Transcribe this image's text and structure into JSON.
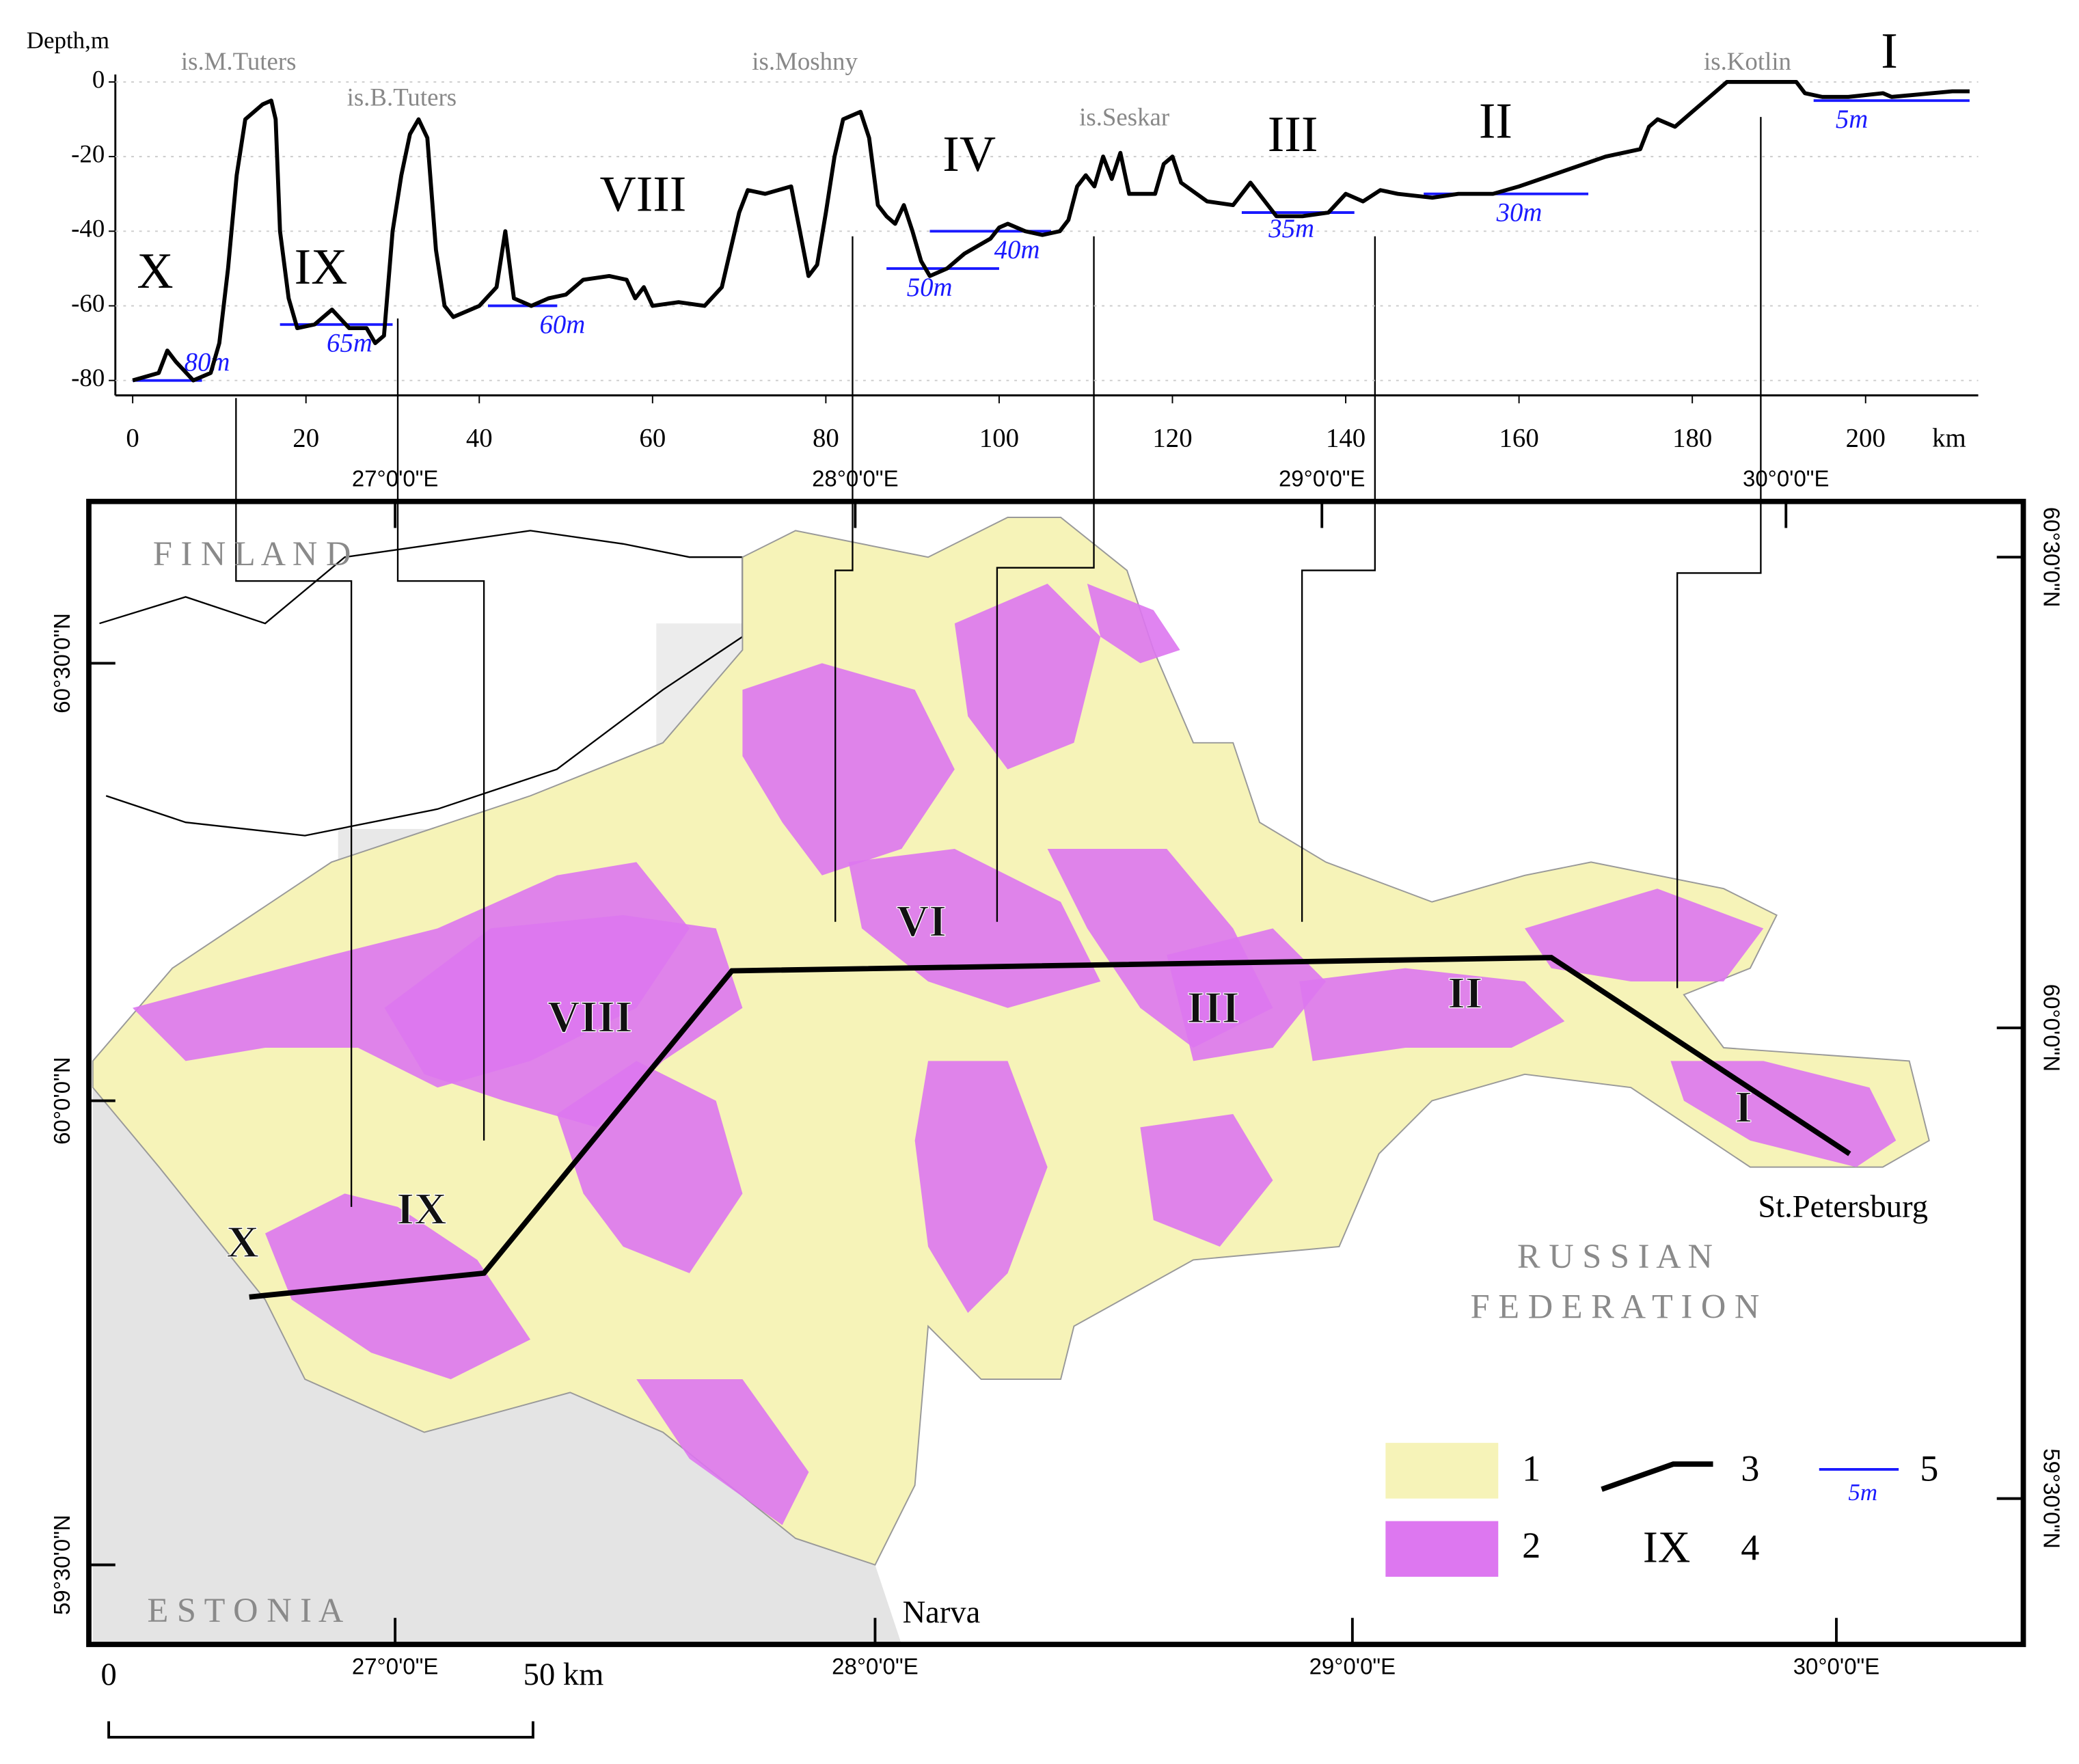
{
  "chart_data": {
    "type": "line",
    "y_label": "Depth,m",
    "x_unit": "km",
    "color": "#000000",
    "x": [
      0,
      3,
      4,
      5,
      7,
      9,
      10,
      11,
      12,
      13,
      15,
      16,
      16.5,
      17,
      18,
      19,
      21,
      23,
      25,
      27,
      28,
      29,
      30,
      31,
      32,
      33,
      34,
      35,
      36,
      37,
      40,
      42,
      43,
      44,
      46,
      48,
      50,
      52,
      55,
      57,
      58,
      59,
      60,
      63,
      66,
      68,
      70,
      71,
      73,
      76,
      77,
      78,
      79,
      80,
      81,
      82,
      84,
      85,
      86,
      87,
      88,
      89,
      90,
      91,
      92,
      94,
      96,
      99,
      100,
      101,
      103,
      105,
      107,
      108,
      109,
      110,
      111,
      112,
      113,
      114,
      115,
      118,
      119,
      120,
      121,
      124,
      127,
      129,
      130,
      132,
      135,
      138,
      140,
      142,
      144,
      146,
      150,
      153,
      157,
      160,
      165,
      170,
      174,
      175,
      176,
      178,
      180,
      182,
      184,
      186,
      192,
      193,
      195,
      198,
      202,
      203,
      210,
      212
    ],
    "values": [
      -80,
      -78,
      -72,
      -75,
      -80,
      -78,
      -70,
      -50,
      -25,
      -10,
      -6,
      -5,
      -10,
      -40,
      -58,
      -66,
      -65,
      -61,
      -66,
      -66,
      -70,
      -68,
      -40,
      -25,
      -14,
      -10,
      -15,
      -45,
      -60,
      -63,
      -60,
      -55,
      -40,
      -58,
      -60,
      -58,
      -57,
      -53,
      -52,
      -53,
      -58,
      -55,
      -60,
      -59,
      -60,
      -55,
      -35,
      -29,
      -30,
      -28,
      -40,
      -52,
      -49,
      -35,
      -20,
      -10,
      -8,
      -15,
      -33,
      -36,
      -38,
      -33,
      -40,
      -48,
      -52,
      -50,
      -46,
      -42,
      -39,
      -38,
      -40,
      -41,
      -40,
      -37,
      -28,
      -25,
      -28,
      -20,
      -26,
      -19,
      -30,
      -30,
      -22,
      -20,
      -27,
      -32,
      -33,
      -27,
      -30,
      -36,
      -36,
      -35,
      -30,
      -32,
      -29,
      -30,
      -31,
      -30,
      -30,
      -28,
      -24,
      -20,
      -18,
      -12,
      -10,
      -12,
      -8,
      -4,
      0,
      0,
      0,
      -3,
      -4,
      -4,
      -3,
      -4,
      -2.5,
      -2.5
    ],
    "xlim": [
      -2,
      213
    ],
    "xticks": [
      0,
      20,
      40,
      60,
      80,
      100,
      120,
      140,
      160,
      180,
      200
    ],
    "ylim": [
      -84,
      2
    ],
    "yticks": [
      0,
      -20,
      -40,
      -60,
      -80
    ],
    "grid": true,
    "depth_marks": [
      {
        "label": "80m",
        "depth": -80,
        "x": [
          0,
          8
        ]
      },
      {
        "label": "65m",
        "depth": -65,
        "x": [
          17,
          30
        ]
      },
      {
        "label": "60m",
        "depth": -60,
        "x": [
          41,
          49
        ]
      },
      {
        "label": "50m",
        "depth": -50,
        "x": [
          87,
          100
        ]
      },
      {
        "label": "40m",
        "depth": -40,
        "x": [
          92,
          106
        ]
      },
      {
        "label": "35m",
        "depth": -35,
        "x": [
          128,
          141
        ]
      },
      {
        "label": "30m",
        "depth": -30,
        "x": [
          149,
          168
        ]
      },
      {
        "label": "5m",
        "depth": -5,
        "x": [
          194,
          212
        ]
      }
    ],
    "depth_mark_color": "#1a1aff",
    "zones": [
      "X",
      "IX",
      "VIII",
      "IV",
      "III",
      "II",
      "I"
    ],
    "islands": [
      "is.M.Tuters",
      "is.B.Tuters",
      "is.Moshny",
      "is.Seskar",
      "is.Kotlin"
    ]
  },
  "map": {
    "countries": [
      "F I N L A N D",
      "E S T O N I A",
      "R U S S I A N",
      "F E D E R A T I O N"
    ],
    "cities": [
      "St.Petersburg",
      "Narva"
    ],
    "zones": [
      "VIII",
      "VI",
      "III",
      "II",
      "I",
      "IX",
      "X"
    ],
    "lon_ticks_top": [
      "27°0'0\"E",
      "28°0'0\"E",
      "29°0'0\"E",
      "30°0'0\"E"
    ],
    "lon_ticks_bottom": [
      "27°0'0\"E",
      "28°0'0\"E",
      "29°0'0\"E",
      "30°0'0\"E"
    ],
    "lat_ticks_left": [
      "60°30'0\"N",
      "60°0'0\"N",
      "59°30'0\"N"
    ],
    "lat_ticks_right": [
      "60°30'0\"N",
      "60°0'0\"N",
      "59°30'0\"N"
    ],
    "scale_bar": [
      "0",
      "50 km"
    ],
    "legend": [
      "1",
      "2",
      "3",
      "4",
      "5"
    ],
    "legend_zone_sample": "IX",
    "legend_depth_sample": "5m",
    "sand_color": "#f6f3b8",
    "clay_color": "#dd77f0"
  }
}
